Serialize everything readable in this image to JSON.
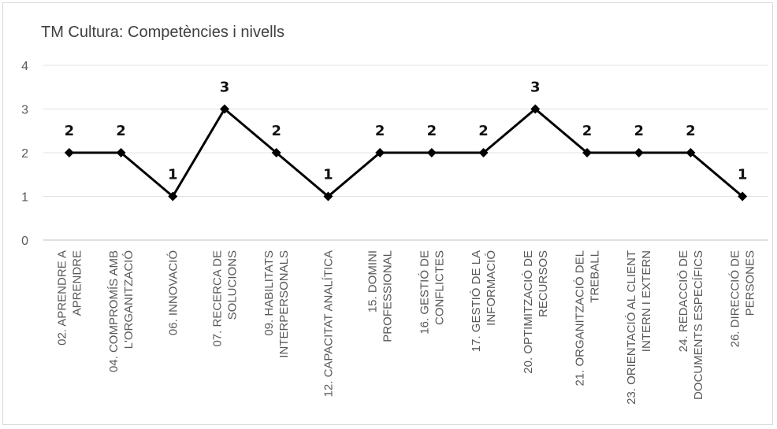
{
  "chart_data": {
    "type": "line",
    "title": "TM Cultura: Competències i nivells",
    "xlabel": "",
    "ylabel": "",
    "ylim": [
      0,
      4
    ],
    "yticks": [
      "0",
      "1",
      "2",
      "3",
      "4"
    ],
    "grid": true,
    "legend": "none",
    "series_color": "#000000",
    "categories": [
      [
        "02. APRENDRE A",
        "APRENDRE"
      ],
      [
        "04. COMPROMÍS AMB",
        "L'ORGANITZACIÓ"
      ],
      [
        "06. INNOVACIÓ"
      ],
      [
        "07. RECERCA DE",
        "SOLUCIONS"
      ],
      [
        "09. HABILITATS",
        "INTERPERSONALS"
      ],
      [
        "12. CAPACITAT ANALÍTICA"
      ],
      [
        "15. DOMINI",
        "PROFESSIONAL"
      ],
      [
        "16. GESTIÓ DE",
        "CONFLICTES"
      ],
      [
        "17. GESTIÓ DE LA",
        "INFORMACIÓ"
      ],
      [
        "20. OPTIMITZACIÓ DE",
        "RECURSOS"
      ],
      [
        "21. ORGANITZACIÓ DEL",
        "TREBALL"
      ],
      [
        "23. ORIENTACIÓ AL CLIENT",
        "INTERN I EXTERN"
      ],
      [
        "24. REDACCIÓ DE",
        "DOCUMENTS ESPECÍFICS"
      ],
      [
        "26. DIRECCIÓ DE",
        "PERSONES"
      ]
    ],
    "series": [
      {
        "values": [
          2,
          2,
          1,
          3,
          2,
          1,
          2,
          2,
          2,
          3,
          2,
          2,
          2,
          1
        ]
      }
    ]
  }
}
